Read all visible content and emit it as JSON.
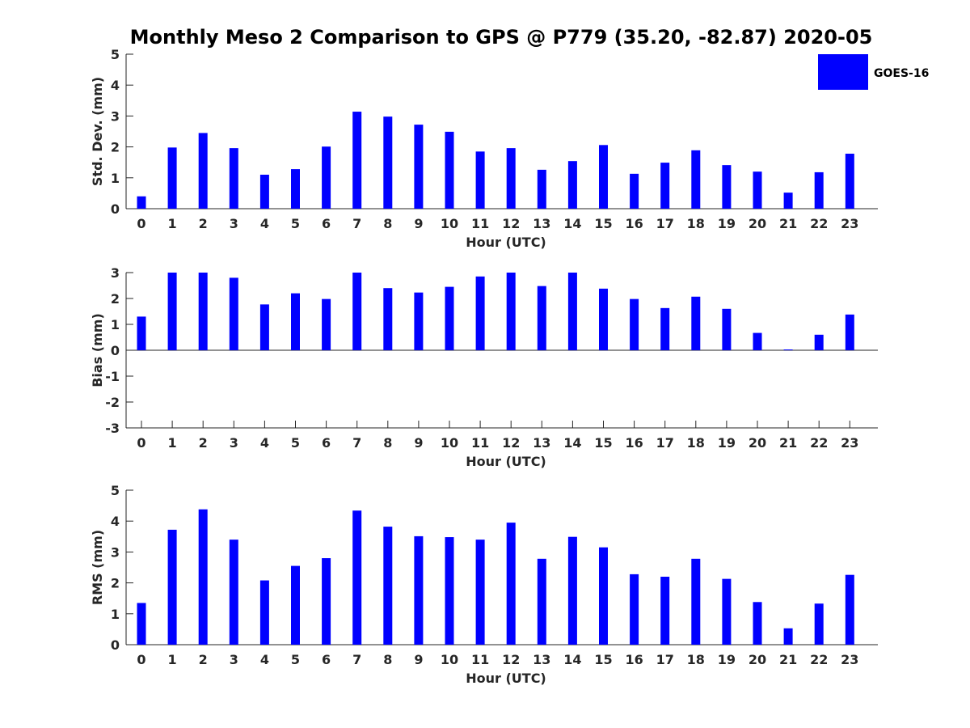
{
  "figure": {
    "title": "Monthly Meso 2 Comparison to GPS @ P779 (35.20, -82.87) 2020-05",
    "bar_color": "#0000ff",
    "legend": {
      "label": "GOES-16",
      "placement": "top-right"
    }
  },
  "chart_data": [
    {
      "type": "bar",
      "title": "",
      "xlabel": "Hour (UTC)",
      "ylabel": "Std. Dev. (mm)",
      "ylim": [
        0,
        5
      ],
      "yticks": [
        0,
        1,
        2,
        3,
        4,
        5
      ],
      "categories": [
        "0",
        "1",
        "2",
        "3",
        "4",
        "5",
        "6",
        "7",
        "8",
        "9",
        "10",
        "11",
        "12",
        "13",
        "14",
        "15",
        "16",
        "17",
        "18",
        "19",
        "20",
        "21",
        "22",
        "23"
      ],
      "series": [
        {
          "name": "GOES-16",
          "values": [
            0.4,
            1.98,
            2.45,
            1.96,
            1.1,
            1.28,
            2.01,
            3.14,
            2.98,
            2.72,
            2.49,
            1.85,
            1.96,
            1.26,
            1.54,
            2.06,
            1.13,
            1.49,
            1.89,
            1.41,
            1.2,
            0.52,
            1.18,
            1.78
          ]
        }
      ],
      "grid": false
    },
    {
      "type": "bar",
      "title": "",
      "xlabel": "Hour (UTC)",
      "ylabel": "Bias (mm)",
      "ylim": [
        -3,
        3
      ],
      "yticks": [
        -3,
        -2,
        -1,
        0,
        1,
        2,
        3
      ],
      "categories": [
        "0",
        "1",
        "2",
        "3",
        "4",
        "5",
        "6",
        "7",
        "8",
        "9",
        "10",
        "11",
        "12",
        "13",
        "14",
        "15",
        "16",
        "17",
        "18",
        "19",
        "20",
        "21",
        "22",
        "23"
      ],
      "series": [
        {
          "name": "GOES-16",
          "values": [
            1.3,
            3.0,
            3.0,
            2.8,
            1.77,
            2.2,
            1.98,
            3.0,
            2.4,
            2.23,
            2.45,
            2.85,
            3.0,
            2.48,
            3.0,
            2.38,
            1.98,
            1.63,
            2.07,
            1.6,
            0.67,
            0.03,
            0.6,
            1.38
          ]
        }
      ],
      "grid": false
    },
    {
      "type": "bar",
      "title": "",
      "xlabel": "Hour (UTC)",
      "ylabel": "RMS (mm)",
      "ylim": [
        0,
        5
      ],
      "yticks": [
        0,
        1,
        2,
        3,
        4,
        5
      ],
      "categories": [
        "0",
        "1",
        "2",
        "3",
        "4",
        "5",
        "6",
        "7",
        "8",
        "9",
        "10",
        "11",
        "12",
        "13",
        "14",
        "15",
        "16",
        "17",
        "18",
        "19",
        "20",
        "21",
        "22",
        "23"
      ],
      "series": [
        {
          "name": "GOES-16",
          "values": [
            1.35,
            3.72,
            4.38,
            3.4,
            2.08,
            2.55,
            2.8,
            4.34,
            3.82,
            3.51,
            3.48,
            3.4,
            3.95,
            2.78,
            3.49,
            3.15,
            2.28,
            2.2,
            2.78,
            2.13,
            1.38,
            0.53,
            1.33,
            2.26
          ]
        }
      ],
      "grid": false
    }
  ]
}
